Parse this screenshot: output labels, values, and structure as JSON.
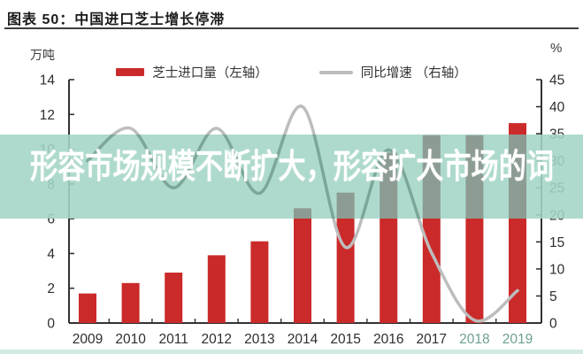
{
  "header": {
    "title": "图表 50：中国进口芝士增长停滞"
  },
  "overlay": {
    "text": "形容市场规模不断扩大，形容扩大市场的词"
  },
  "colors": {
    "bar_red": "#cb2a2a",
    "line_gray": "#bdbdbd",
    "band_teal": "#a3d5c6",
    "band_bar_gray": "#8d9c93",
    "band_line_teal": "#7ca699",
    "axis_dark": "#333333",
    "tick_label": "#2e2e2e",
    "tinted_year_label": "#6d9f92"
  },
  "chart_data": {
    "type": "bar",
    "title": "图表 50：中国进口芝士增长停滞",
    "categories": [
      "2009",
      "2010",
      "2011",
      "2012",
      "2013",
      "2014",
      "2015",
      "2016",
      "2017",
      "2018",
      "2019"
    ],
    "series": [
      {
        "name": "芝士进口量（左轴）",
        "type": "bar",
        "axis": "left",
        "values": [
          1.7,
          2.3,
          2.9,
          3.9,
          4.7,
          6.6,
          7.5,
          9.8,
          10.8,
          10.8,
          11.5
        ]
      },
      {
        "name": "同比增速 （右轴）",
        "type": "line",
        "axis": "right",
        "values": [
          30,
          36,
          25,
          36,
          24,
          40,
          14,
          32,
          13,
          0.5,
          6
        ]
      }
    ],
    "left_axis": {
      "unit": "万吨",
      "min": 0,
      "max": 14,
      "ticks": [
        0,
        2,
        4,
        6,
        8,
        10,
        12,
        14
      ]
    },
    "right_axis": {
      "unit": "%",
      "min": 0,
      "max": 45,
      "ticks": [
        0,
        5,
        10,
        15,
        20,
        25,
        30,
        35,
        40,
        45
      ]
    },
    "grid": false,
    "legend_position": "top-center"
  }
}
